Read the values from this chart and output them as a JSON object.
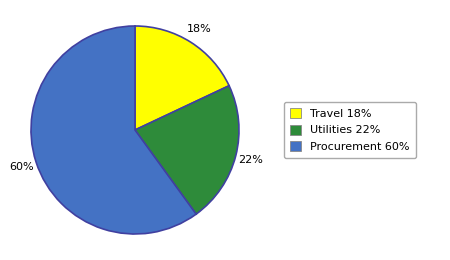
{
  "labels": [
    "Travel 18%",
    "Utilities 22%",
    "Procurement 60%"
  ],
  "sizes": [
    18,
    22,
    60
  ],
  "colors": [
    "#FFFF00",
    "#2E8B3A",
    "#4472C4"
  ],
  "legend_labels": [
    "Travel 18%",
    "Utilities 22%",
    "Procurement 60%"
  ],
  "startangle": 90,
  "figsize": [
    4.5,
    2.6
  ],
  "dpi": 100,
  "background_color": "#FFFFFF",
  "edge_color": "#4040A0",
  "edge_linewidth": 1.2,
  "autopct_fontsize": 8,
  "legend_fontsize": 8,
  "pct_distance": 1.15
}
